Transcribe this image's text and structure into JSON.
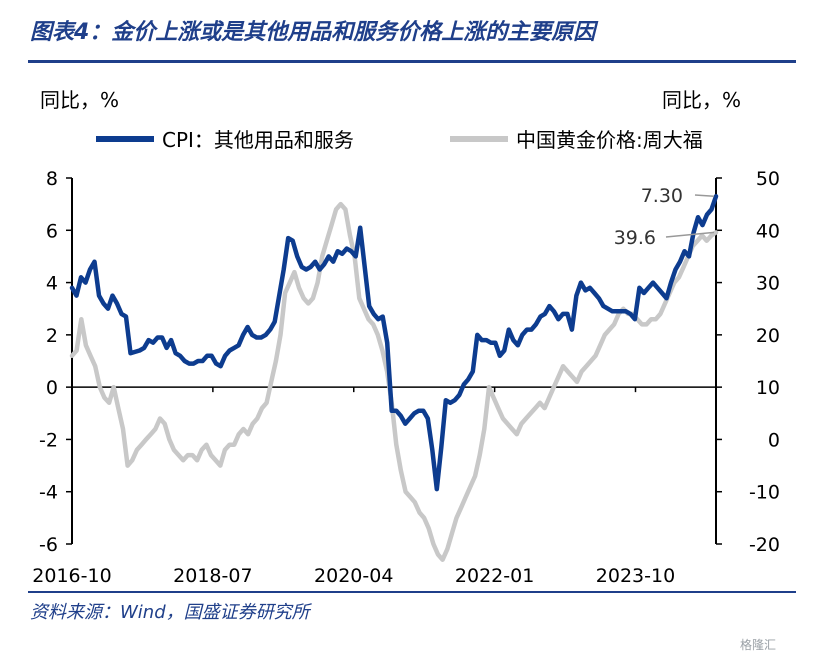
{
  "title": "图表4：金价上涨或是其他用品和服务价格上涨的主要原因",
  "source": "资料来源：Wind，国盛证券研究所",
  "watermark": "格隆汇",
  "unit_left": "同比，%",
  "unit_right": "同比，%",
  "colors": {
    "cpi": "#0d3c8f",
    "gold": "#c8c8c8",
    "brand": "#1f3f8a"
  },
  "chart_data": {
    "type": "line",
    "x_ticks": [
      "2016-10",
      "2018-07",
      "2020-04",
      "2022-01",
      "2023-10"
    ],
    "x_start": "2016-10",
    "x_end": "2024-10",
    "y_left": {
      "min": -6,
      "max": 8,
      "ticks": [
        "8",
        "6",
        "4",
        "2",
        "0",
        "-2",
        "-4",
        "-6"
      ]
    },
    "y_right": {
      "min": -20,
      "max": 50,
      "ticks": [
        "50",
        "40",
        "30",
        "20",
        "10",
        "0",
        "-10",
        "-20"
      ]
    },
    "series": [
      {
        "name": "CPI：其他用品和服务",
        "axis": "left",
        "values": [
          3.8,
          3.5,
          4.2,
          4.0,
          4.5,
          4.8,
          3.5,
          3.2,
          3.0,
          3.5,
          3.2,
          2.8,
          2.7,
          1.3,
          1.35,
          1.4,
          1.5,
          1.8,
          1.7,
          1.9,
          1.9,
          1.5,
          1.8,
          1.3,
          1.2,
          1.0,
          0.9,
          0.9,
          1.0,
          1.0,
          1.2,
          1.2,
          0.9,
          0.8,
          1.2,
          1.4,
          1.5,
          1.6,
          2.0,
          2.3,
          2.0,
          1.9,
          1.9,
          2.0,
          2.2,
          2.5,
          3.5,
          4.5,
          5.7,
          5.6,
          5.0,
          4.6,
          4.5,
          4.6,
          4.8,
          4.5,
          4.7,
          5.0,
          4.8,
          5.2,
          5.1,
          5.3,
          5.2,
          5.0,
          6.1,
          4.6,
          3.1,
          2.8,
          2.6,
          2.7,
          1.7,
          -0.9,
          -0.9,
          -1.1,
          -1.4,
          -1.2,
          -1.0,
          -0.9,
          -0.9,
          -1.2,
          -2.4,
          -3.9,
          -2.3,
          -0.5,
          -0.6,
          -0.5,
          -0.3,
          0.1,
          0.3,
          0.6,
          2.0,
          1.8,
          1.8,
          1.7,
          1.7,
          1.2,
          1.4,
          2.2,
          1.8,
          1.6,
          2.0,
          2.2,
          2.2,
          2.4,
          2.7,
          2.8,
          3.1,
          2.9,
          2.6,
          2.8,
          2.8,
          2.2,
          3.5,
          4.0,
          3.7,
          3.8,
          3.6,
          3.4,
          3.1,
          3.0,
          2.9,
          2.9,
          2.9,
          2.9,
          2.8,
          2.6,
          3.8,
          3.6,
          3.8,
          4.0,
          3.8,
          3.6,
          3.4,
          4.0,
          4.5,
          4.8,
          5.2,
          5.0,
          5.9,
          6.5,
          6.2,
          6.6,
          6.8,
          7.3
        ]
      },
      {
        "name": "中国黄金价格:周大福",
        "axis": "right",
        "values": [
          16,
          17,
          23,
          18,
          16,
          14,
          10,
          8,
          7,
          10,
          6,
          2,
          -5,
          -4,
          -2,
          -1,
          0,
          1,
          2,
          4,
          3,
          0,
          -2,
          -3,
          -4,
          -3,
          -3,
          -4,
          -2,
          -1,
          -3,
          -4,
          -5,
          -2,
          -1,
          -1,
          1,
          2,
          1,
          3,
          4,
          6,
          7,
          11,
          15,
          20,
          28,
          30,
          32,
          29,
          27,
          26,
          27,
          30,
          35,
          38,
          41,
          44,
          45,
          44,
          39,
          35,
          27,
          25,
          23,
          22,
          20,
          17,
          13,
          7,
          -1,
          -6,
          -10,
          -11,
          -12,
          -14,
          -15,
          -17,
          -20,
          -22,
          -23,
          -21,
          -18,
          -15,
          -13,
          -11,
          -9,
          -7,
          -3,
          2,
          10,
          8,
          6,
          4,
          3,
          2,
          1,
          3,
          4,
          5,
          6,
          7,
          6,
          8,
          10,
          12,
          14,
          13,
          12,
          11,
          13,
          14,
          15,
          16,
          18,
          20,
          21,
          22,
          24,
          25,
          24,
          24,
          23,
          22,
          22,
          23,
          23,
          24,
          26,
          28,
          30,
          31,
          33,
          35,
          37,
          38,
          39,
          38,
          39,
          39.6
        ]
      }
    ],
    "annotations": [
      {
        "text": "7.30",
        "series": 0,
        "value": 7.3
      },
      {
        "text": "39.6",
        "series": 1,
        "value": 39.6
      }
    ],
    "grid": false,
    "legend": "top"
  }
}
